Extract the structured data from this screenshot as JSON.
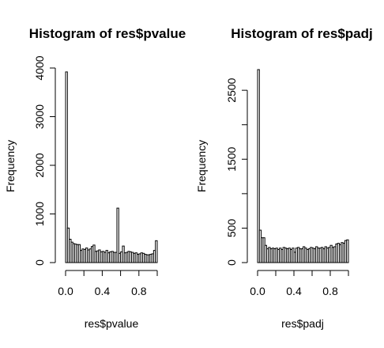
{
  "chart_data": [
    {
      "type": "bar",
      "title": "Histogram of res$pvalue",
      "xlabel": "res$pvalue",
      "ylabel": "Frequency",
      "x_bin_width": 0.02,
      "x_ticks": [
        0.0,
        0.4,
        0.8
      ],
      "x_tick_labels": [
        "0.0",
        "0.4",
        "0.8"
      ],
      "y_ticks": [
        0,
        1000,
        2000,
        3000,
        4000
      ],
      "y_tick_labels": [
        "0",
        "1000",
        "2000",
        "3000",
        "4000"
      ],
      "xlim": [
        0,
        1
      ],
      "ylim": [
        0,
        4000
      ],
      "grid": false,
      "values": [
        3920,
        710,
        480,
        420,
        390,
        380,
        370,
        370,
        250,
        280,
        270,
        300,
        260,
        280,
        330,
        360,
        230,
        240,
        260,
        220,
        230,
        210,
        250,
        200,
        220,
        230,
        210,
        210,
        1120,
        190,
        220,
        340,
        200,
        210,
        230,
        220,
        210,
        190,
        200,
        170,
        180,
        200,
        190,
        170,
        160,
        160,
        170,
        180,
        250,
        450
      ]
    },
    {
      "type": "bar",
      "title": "Histogram of res$padj",
      "xlabel": "res$padj",
      "ylabel": "Frequency",
      "x_bin_width": 0.02,
      "x_ticks": [
        0.0,
        0.4,
        0.8
      ],
      "x_tick_labels": [
        "0.0",
        "0.4",
        "0.8"
      ],
      "y_ticks": [
        0,
        500,
        1500,
        2500
      ],
      "y_tick_labels": [
        "0",
        "500",
        "1500",
        "2500"
      ],
      "xlim": [
        0,
        1
      ],
      "ylim": [
        0,
        2800
      ],
      "grid": false,
      "values": [
        2800,
        470,
        360,
        360,
        250,
        200,
        220,
        200,
        210,
        200,
        210,
        190,
        210,
        190,
        220,
        210,
        200,
        210,
        190,
        210,
        150,
        210,
        220,
        200,
        200,
        230,
        210,
        190,
        200,
        220,
        210,
        200,
        230,
        210,
        210,
        220,
        200,
        230,
        210,
        220,
        250,
        220,
        230,
        270,
        280,
        260,
        290,
        280,
        320,
        330
      ]
    }
  ]
}
